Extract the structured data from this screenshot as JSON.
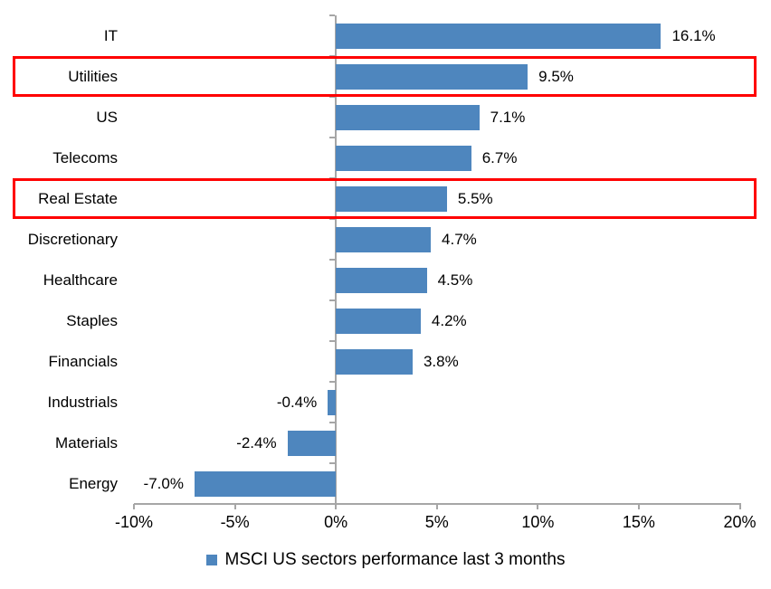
{
  "chart_data": {
    "type": "bar",
    "orientation": "horizontal",
    "title": "",
    "categories": [
      "IT",
      "Utilities",
      "US",
      "Telecoms",
      "Real Estate",
      "Discretionary",
      "Healthcare",
      "Staples",
      "Financials",
      "Industrials",
      "Materials",
      "Energy"
    ],
    "values": [
      16.1,
      9.5,
      7.1,
      6.7,
      5.5,
      4.7,
      4.5,
      4.2,
      3.8,
      -0.4,
      -2.4,
      -7.0
    ],
    "value_labels": [
      "16.1%",
      "9.5%",
      "7.1%",
      "6.7%",
      "5.5%",
      "4.7%",
      "4.5%",
      "4.2%",
      "3.8%",
      "-0.4%",
      "-2.4%",
      "-7.0%"
    ],
    "xlim": [
      -10,
      20
    ],
    "x_ticks": [
      -10,
      -5,
      0,
      5,
      10,
      15,
      20
    ],
    "x_tick_labels": [
      "-10%",
      "-5%",
      "0%",
      "5%",
      "10%",
      "15%",
      "20%"
    ],
    "grid": false,
    "legend_position": "bottom",
    "legend": [
      {
        "label": "MSCI US sectors performance last 3 months",
        "color": "#4E86BE"
      }
    ],
    "highlighted_categories": [
      "Utilities",
      "Real Estate"
    ],
    "colors": {
      "bar": "#4E86BE",
      "axis": "#A6A6A6",
      "highlight_box": "#FF0000",
      "text": "#000000",
      "background": "#FFFFFF"
    }
  }
}
